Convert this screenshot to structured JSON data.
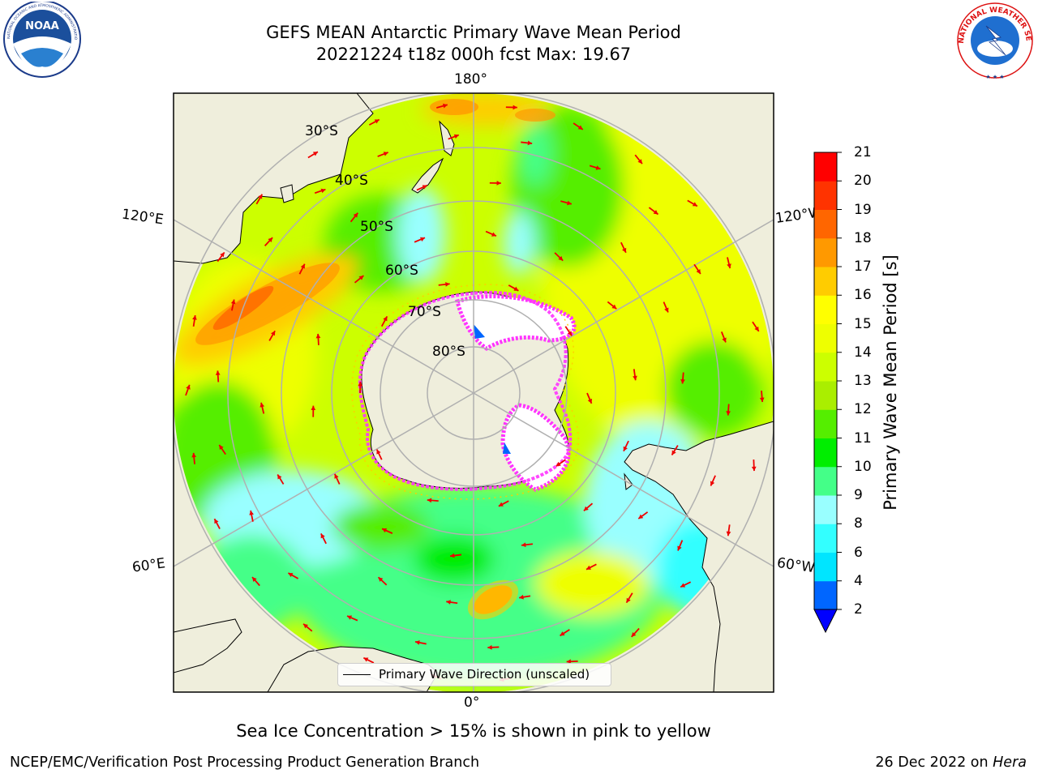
{
  "title": {
    "line1": "GEFS MEAN Antarctic Primary Wave Mean Period",
    "line2": "20221224 t18z 000h fcst   Max: 19.67"
  },
  "logos": {
    "left": "NOAA",
    "left_ring": "NATIONAL OCEANIC AND ATMOSPHERIC ADMINISTRATION · U.S. DEPARTMENT OF COMMERCE",
    "right_ring": "NATIONAL WEATHER SERVICE"
  },
  "map": {
    "projection": "south-polar-stereographic",
    "latitude_labels": [
      "30°S",
      "40°S",
      "50°S",
      "60°S",
      "70°S",
      "80°S"
    ],
    "longitude_labels": {
      "top": "180°",
      "bottom": "0°",
      "upper_left": "120°E",
      "lower_left": "60°E",
      "upper_right": "120°W",
      "lower_right": "60°W"
    },
    "colors": {
      "land": "#efeedc",
      "ice": "#ffffff",
      "ice_edge": "#ff33ff",
      "arrow": "#ee0000",
      "grid": "#b0b0b0"
    }
  },
  "colorbar": {
    "label": "Primary Wave Mean Period [s]",
    "ticks": [
      "2",
      "4",
      "6",
      "8",
      "9",
      "10",
      "11",
      "12",
      "13",
      "14",
      "15",
      "16",
      "17",
      "18",
      "19",
      "20",
      "21"
    ],
    "colors": [
      "#0066ff",
      "#00e5ff",
      "#33ffff",
      "#99ffff",
      "#44ff88",
      "#00ee00",
      "#55ee00",
      "#aaee00",
      "#ccff00",
      "#eeff00",
      "#ffff00",
      "#ffcc00",
      "#ff9900",
      "#ff6600",
      "#ff3300",
      "#ff0000"
    ],
    "extend_color": "#0000ff"
  },
  "legend": {
    "label": "Primary Wave Direction (unscaled)"
  },
  "caption": "Sea Ice Concentration > 15% is shown in pink to yellow",
  "footer": {
    "left": "NCEP/EMC/Verification Post Processing Product Generation Branch",
    "right_date": "26 Dec 2022 on ",
    "right_host": "Hera"
  }
}
